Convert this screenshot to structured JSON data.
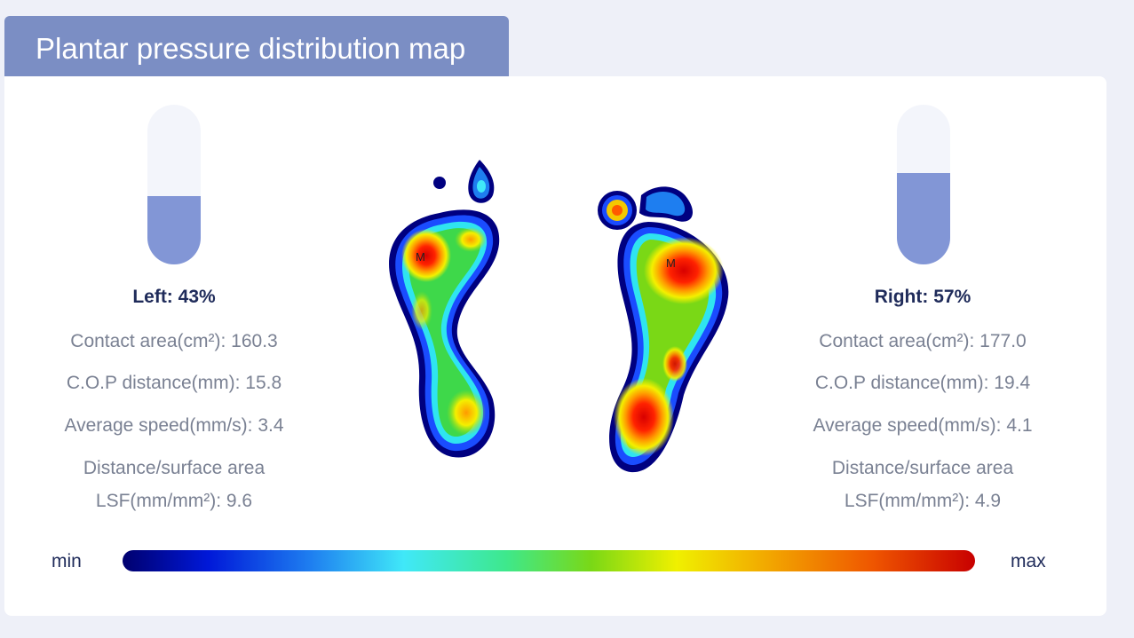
{
  "header": {
    "title": "Plantar pressure distribution map"
  },
  "left": {
    "label": "Left: 43%",
    "percent": 43,
    "metrics": {
      "contact_area": "Contact area(cm²): 160.3",
      "cop_distance": "C.O.P distance(mm): 15.8",
      "average_speed": "Average speed(mm/s): 3.4",
      "lsf_line1": "Distance/surface area",
      "lsf_line2": "LSF(mm/mm²): 9.6"
    },
    "marker": "M"
  },
  "right": {
    "label": "Right: 57%",
    "percent": 57,
    "metrics": {
      "contact_area": "Contact area(cm²): 177.0",
      "cop_distance": "C.O.P distance(mm): 19.4",
      "average_speed": "Average speed(mm/s): 4.1",
      "lsf_line1": "Distance/surface area",
      "lsf_line2": "LSF(mm/mm²): 4.9"
    },
    "marker": "M"
  },
  "scale": {
    "min_label": "min",
    "max_label": "max"
  },
  "colors": {
    "gauge_fill": "#8296d6",
    "header_bg": "#7b8ec4",
    "text_dark": "#1f2b5a"
  }
}
